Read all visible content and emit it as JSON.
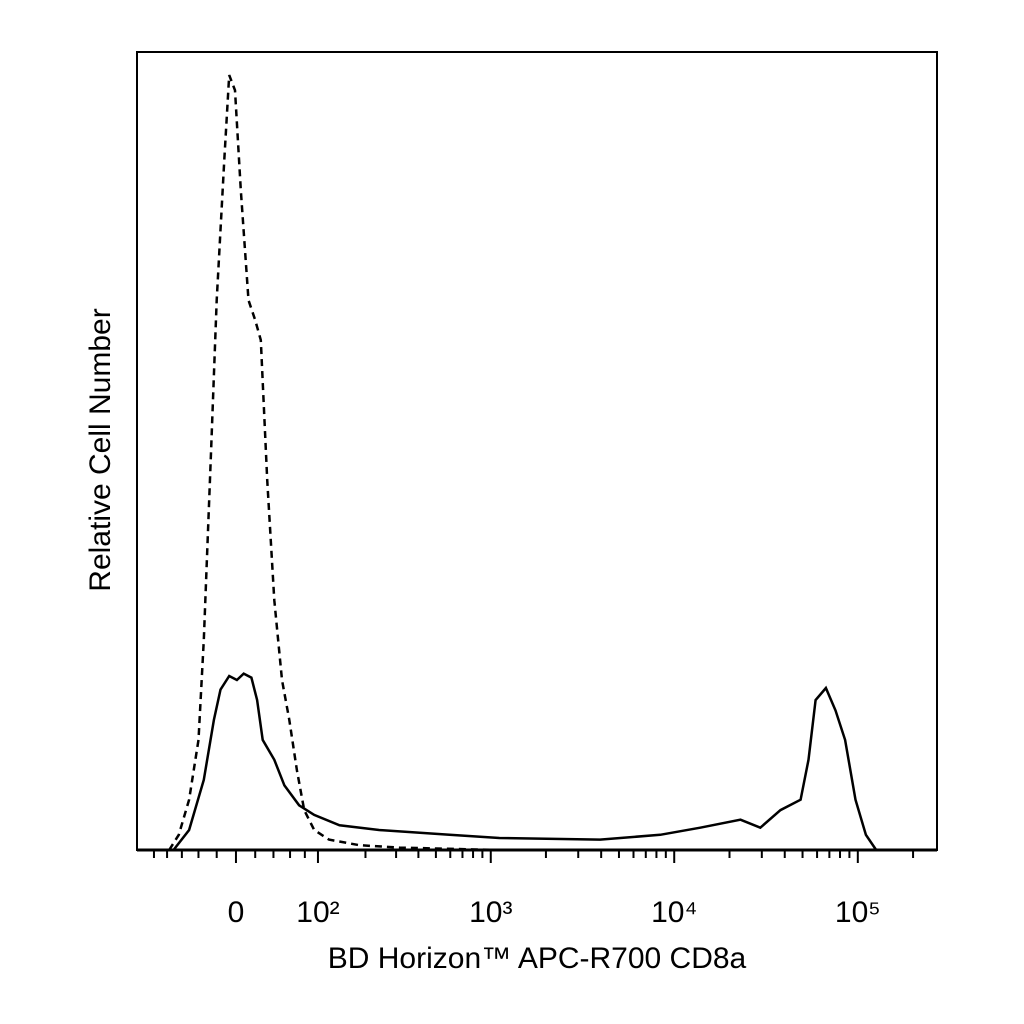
{
  "chart_data": {
    "type": "histogram-overlay",
    "x_label": "BD Horizon™ APC-R700 CD8a",
    "y_label": "Relative Cell Number",
    "xscale": "biexponential",
    "xlim": [
      -130,
      270000
    ],
    "xticks": [
      0,
      {
        "value": 100,
        "label": "10²"
      },
      {
        "value": 1000,
        "label": "10³"
      },
      {
        "value": 10000,
        "label": "10⁴"
      },
      {
        "value": 100000,
        "label": "10⁵"
      }
    ],
    "xminor_ticks": [
      -100,
      -80,
      -60,
      -40,
      -20,
      20,
      40,
      60,
      80,
      200,
      300,
      400,
      500,
      600,
      700,
      800,
      900,
      2000,
      3000,
      4000,
      5000,
      6000,
      7000,
      8000,
      9000,
      20000,
      30000,
      40000,
      50000,
      60000,
      70000,
      80000,
      90000,
      200000
    ],
    "ylim": [
      0,
      100
    ],
    "series": [
      {
        "color": "#000000",
        "dashed": true,
        "x": [
          -77,
          -64,
          -51,
          -40,
          -34,
          -26,
          -20,
          -12,
          -7,
          -1,
          5,
          13,
          20,
          26,
          33,
          41,
          50,
          59,
          69,
          79,
          94,
          119,
          184,
          313,
          1115
        ],
        "values": [
          0,
          1.9,
          6.3,
          13.8,
          26.3,
          50.1,
          68.9,
          86.5,
          97.1,
          95.2,
          82.7,
          68.9,
          66.4,
          63.9,
          46.4,
          31.3,
          21.3,
          16.3,
          10.0,
          5.0,
          2.5,
          1.3,
          0.6,
          0.3,
          0
        ]
      },
      {
        "color": "#000000",
        "dashed": false,
        "x": [
          -71,
          -51,
          -34,
          -23,
          -16,
          -7,
          1,
          8,
          16,
          22,
          28,
          41,
          53,
          72,
          94,
          139,
          240,
          594,
          1115,
          3940,
          8390,
          13850,
          22950,
          29440,
          37900,
          48800,
          53900,
          58900,
          67000,
          75600,
          85300,
          97200,
          110700,
          126000
        ],
        "values": [
          0,
          2.5,
          8.8,
          16.3,
          20.1,
          21.8,
          21.3,
          22.1,
          21.6,
          18.8,
          13.8,
          11.3,
          8.1,
          5.6,
          4.4,
          3.1,
          2.5,
          1.9,
          1.5,
          1.3,
          1.9,
          2.8,
          3.8,
          2.8,
          5.0,
          6.3,
          11.3,
          18.8,
          20.3,
          17.5,
          13.8,
          6.3,
          1.9,
          0
        ]
      }
    ]
  }
}
